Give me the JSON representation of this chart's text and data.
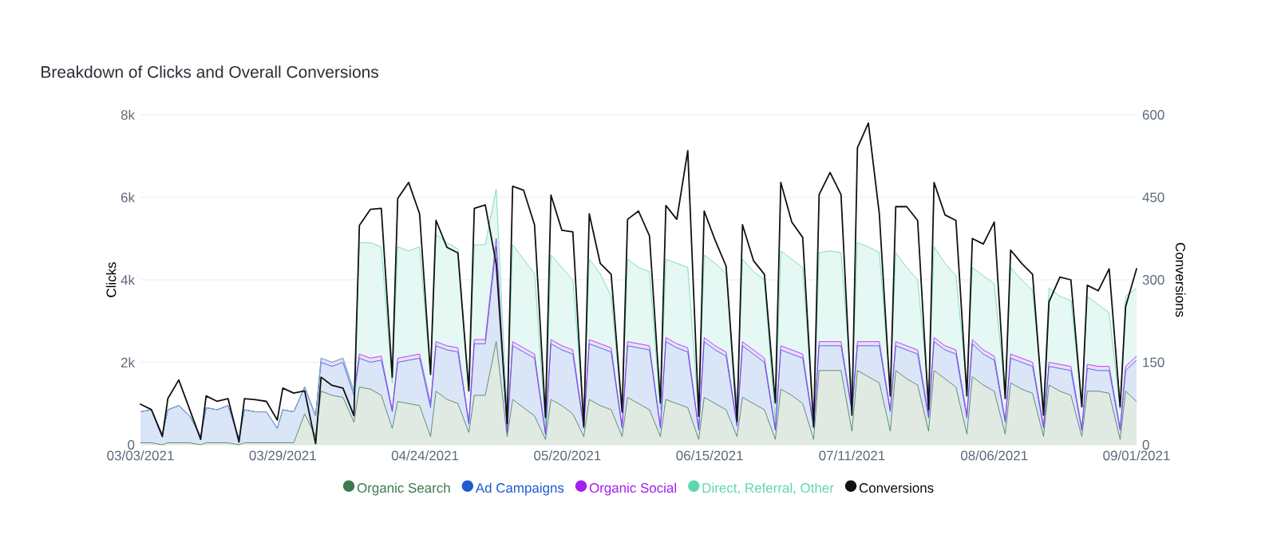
{
  "chart_data": {
    "type": "area",
    "title": "Breakdown of Clicks and Overall Conversions",
    "ylabel": "Clicks",
    "y2label": "Conversions",
    "xlim": [
      "2021-03-03",
      "2021-09-01"
    ],
    "xticks": [
      {
        "value": "2021-03-03",
        "label": "03/03/2021"
      },
      {
        "value": "2021-03-29",
        "label": "03/29/2021"
      },
      {
        "value": "2021-04-24",
        "label": "04/24/2021"
      },
      {
        "value": "2021-05-20",
        "label": "05/20/2021"
      },
      {
        "value": "2021-06-15",
        "label": "06/15/2021"
      },
      {
        "value": "2021-07-11",
        "label": "07/11/2021"
      },
      {
        "value": "2021-08-06",
        "label": "08/06/2021"
      },
      {
        "value": "2021-09-01",
        "label": "09/01/2021"
      }
    ],
    "ylim": [
      0,
      8000
    ],
    "yticks": [
      0,
      {
        "value": 2000,
        "label": "2k"
      },
      {
        "value": 4000,
        "label": "4k"
      },
      {
        "value": 6000,
        "label": "6k"
      },
      {
        "value": 8000,
        "label": "8k"
      }
    ],
    "y2lim": [
      0,
      600
    ],
    "y2ticks": [
      0,
      150,
      300,
      450,
      600
    ],
    "grid": "y",
    "legend": "bottom",
    "x": [
      "2021-03-03",
      "2021-03-05",
      "2021-03-07",
      "2021-03-08",
      "2021-03-10",
      "2021-03-12",
      "2021-03-14",
      "2021-03-15",
      "2021-03-17",
      "2021-03-19",
      "2021-03-21",
      "2021-03-22",
      "2021-03-24",
      "2021-03-26",
      "2021-03-28",
      "2021-03-29",
      "2021-03-31",
      "2021-04-02",
      "2021-04-04",
      "2021-04-05",
      "2021-04-07",
      "2021-04-09",
      "2021-04-11",
      "2021-04-12",
      "2021-04-14",
      "2021-04-16",
      "2021-04-18",
      "2021-04-19",
      "2021-04-21",
      "2021-04-23",
      "2021-04-25",
      "2021-04-26",
      "2021-04-28",
      "2021-04-30",
      "2021-05-02",
      "2021-05-03",
      "2021-05-05",
      "2021-05-07",
      "2021-05-09",
      "2021-05-10",
      "2021-05-12",
      "2021-05-14",
      "2021-05-16",
      "2021-05-17",
      "2021-05-19",
      "2021-05-21",
      "2021-05-23",
      "2021-05-24",
      "2021-05-26",
      "2021-05-28",
      "2021-05-30",
      "2021-05-31",
      "2021-06-02",
      "2021-06-04",
      "2021-06-06",
      "2021-06-07",
      "2021-06-09",
      "2021-06-11",
      "2021-06-13",
      "2021-06-14",
      "2021-06-16",
      "2021-06-18",
      "2021-06-20",
      "2021-06-21",
      "2021-06-23",
      "2021-06-25",
      "2021-06-27",
      "2021-06-28",
      "2021-06-30",
      "2021-07-02",
      "2021-07-04",
      "2021-07-05",
      "2021-07-07",
      "2021-07-09",
      "2021-07-11",
      "2021-07-12",
      "2021-07-14",
      "2021-07-16",
      "2021-07-18",
      "2021-07-19",
      "2021-07-21",
      "2021-07-23",
      "2021-07-25",
      "2021-07-26",
      "2021-07-28",
      "2021-07-30",
      "2021-08-01",
      "2021-08-02",
      "2021-08-04",
      "2021-08-06",
      "2021-08-08",
      "2021-08-09",
      "2021-08-11",
      "2021-08-13",
      "2021-08-15",
      "2021-08-16",
      "2021-08-18",
      "2021-08-20",
      "2021-08-22",
      "2021-08-23",
      "2021-08-25",
      "2021-08-27",
      "2021-08-29",
      "2021-08-30",
      "2021-09-01"
    ],
    "series": [
      {
        "name": "Organic Search",
        "color": "#3d7a52",
        "values": [
          50,
          50,
          0,
          50,
          50,
          50,
          0,
          50,
          50,
          50,
          0,
          50,
          50,
          50,
          50,
          50,
          50,
          750,
          200,
          1300,
          1200,
          1150,
          550,
          1400,
          1350,
          1200,
          400,
          1050,
          1000,
          950,
          200,
          1300,
          1100,
          1000,
          300,
          1200,
          1200,
          2500,
          200,
          1100,
          900,
          700,
          130,
          1100,
          950,
          750,
          200,
          1100,
          950,
          850,
          200,
          1150,
          1000,
          850,
          200,
          1100,
          1000,
          900,
          130,
          1150,
          1000,
          850,
          200,
          1150,
          1000,
          850,
          130,
          1350,
          1200,
          1000,
          130,
          1800,
          1800,
          1800,
          330,
          1800,
          1650,
          1500,
          330,
          1800,
          1600,
          1450,
          330,
          1800,
          1600,
          1400,
          260,
          1650,
          1450,
          1300,
          260,
          1500,
          1350,
          1250,
          200,
          1450,
          1300,
          1200,
          200,
          1300,
          1300,
          1250,
          130,
          1300,
          1050
        ]
      },
      {
        "name": "Ad Campaigns",
        "color": "#1f5bd1",
        "values": [
          800,
          850,
          250,
          850,
          950,
          700,
          200,
          900,
          850,
          950,
          150,
          850,
          800,
          800,
          400,
          850,
          800,
          1400,
          700,
          2000,
          1900,
          2000,
          1200,
          2100,
          2000,
          2050,
          800,
          2000,
          2050,
          2100,
          900,
          2400,
          2300,
          2250,
          500,
          2450,
          2450,
          4800,
          300,
          2400,
          2250,
          2100,
          250,
          2450,
          2300,
          2200,
          400,
          2450,
          2350,
          2250,
          400,
          2400,
          2350,
          2300,
          400,
          2500,
          2350,
          2250,
          350,
          2500,
          2300,
          2150,
          450,
          2400,
          2200,
          2000,
          350,
          2300,
          2200,
          2100,
          400,
          2400,
          2400,
          2400,
          800,
          2400,
          2400,
          2400,
          800,
          2400,
          2300,
          2200,
          650,
          2500,
          2300,
          2200,
          650,
          2450,
          2200,
          2050,
          550,
          2100,
          2000,
          1900,
          400,
          1900,
          1850,
          1800,
          350,
          1850,
          1800,
          1800,
          350,
          1800,
          2050
        ]
      },
      {
        "name": "Organic Social",
        "color": "#a21ff0",
        "values": [
          800,
          850,
          250,
          850,
          950,
          700,
          200,
          900,
          850,
          950,
          150,
          850,
          800,
          800,
          400,
          850,
          800,
          1400,
          700,
          2100,
          2000,
          2100,
          1300,
          2200,
          2100,
          2150,
          850,
          2100,
          2150,
          2200,
          1000,
          2500,
          2400,
          2350,
          550,
          2550,
          2550,
          5000,
          350,
          2500,
          2350,
          2200,
          300,
          2550,
          2400,
          2300,
          450,
          2550,
          2450,
          2350,
          450,
          2500,
          2450,
          2400,
          450,
          2600,
          2450,
          2350,
          400,
          2600,
          2400,
          2250,
          500,
          2500,
          2300,
          2100,
          400,
          2400,
          2300,
          2200,
          450,
          2500,
          2500,
          2500,
          850,
          2500,
          2500,
          2500,
          850,
          2500,
          2400,
          2300,
          720,
          2600,
          2400,
          2300,
          720,
          2550,
          2300,
          2150,
          600,
          2200,
          2100,
          2000,
          460,
          2000,
          1950,
          1900,
          400,
          1950,
          1900,
          1900,
          400,
          1900,
          2150
        ]
      },
      {
        "name": "Direct, Referral, Other",
        "color": "#5fd6b2",
        "values": [
          800,
          850,
          250,
          850,
          950,
          700,
          200,
          900,
          850,
          950,
          150,
          850,
          800,
          800,
          400,
          850,
          800,
          1400,
          700,
          2100,
          2000,
          2100,
          1300,
          4900,
          4900,
          4800,
          1500,
          4800,
          4700,
          4800,
          1700,
          5100,
          4900,
          4750,
          1300,
          4850,
          4850,
          6200,
          700,
          4850,
          4500,
          4150,
          450,
          4600,
          4300,
          4000,
          700,
          4500,
          4150,
          3600,
          750,
          4500,
          4300,
          4200,
          850,
          4500,
          4400,
          4300,
          700,
          4600,
          4400,
          4150,
          950,
          4500,
          4200,
          4000,
          550,
          4700,
          4500,
          4300,
          550,
          4660,
          4700,
          4660,
          1300,
          4900,
          4800,
          4660,
          1300,
          4660,
          4300,
          4000,
          1250,
          4800,
          4400,
          4100,
          1400,
          4300,
          4100,
          3900,
          1250,
          4300,
          4000,
          3750,
          1000,
          3800,
          3600,
          3500,
          1000,
          3600,
          3400,
          3200,
          850,
          3600,
          3800
        ]
      },
      {
        "name": "Conversions",
        "type": "line",
        "axis": "y2",
        "color": "#111111",
        "values": [
          74,
          64,
          15,
          84,
          118,
          64,
          10,
          89,
          79,
          84,
          5,
          84,
          82,
          79,
          45,
          103,
          94,
          98,
          2,
          123,
          108,
          103,
          53,
          399,
          428,
          430,
          123,
          448,
          477,
          420,
          128,
          408,
          359,
          349,
          98,
          430,
          436,
          329,
          39,
          470,
          463,
          400,
          50,
          454,
          390,
          387,
          33,
          420,
          330,
          310,
          60,
          410,
          425,
          380,
          76,
          435,
          410,
          535,
          52,
          425,
          372,
          325,
          43,
          400,
          335,
          310,
          76,
          477,
          405,
          377,
          33,
          455,
          495,
          455,
          54,
          540,
          585,
          420,
          89,
          433,
          433,
          408,
          64,
          477,
          418,
          408,
          89,
          375,
          365,
          405,
          84,
          354,
          330,
          310,
          54,
          260,
          305,
          300,
          69,
          290,
          280,
          320,
          69,
          251,
          320
        ]
      }
    ]
  }
}
